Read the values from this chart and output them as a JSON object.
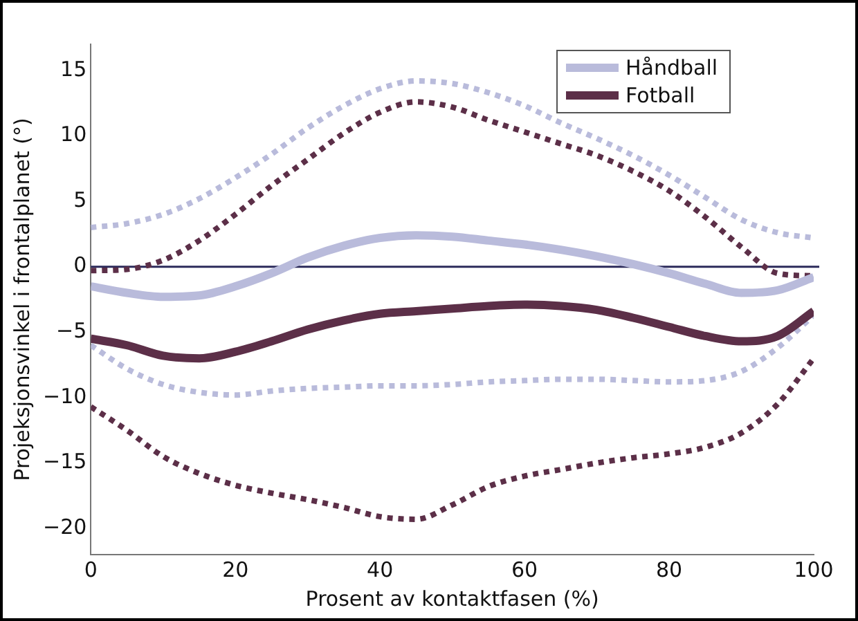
{
  "chart_data": {
    "type": "line",
    "xlabel": "Prosent av kontaktfasen (%)",
    "ylabel": "Projeksjonsvinkel i frontalplanet (°)",
    "x": [
      0,
      5,
      10,
      15,
      20,
      25,
      30,
      35,
      40,
      45,
      50,
      55,
      60,
      65,
      70,
      75,
      80,
      85,
      90,
      95,
      100
    ],
    "xlim": [
      0,
      100
    ],
    "xticks": [
      0,
      20,
      40,
      60,
      80,
      100
    ],
    "ylim": [
      -22,
      17
    ],
    "yticks": [
      -20,
      -15,
      -10,
      -5,
      0,
      5,
      10,
      15
    ],
    "grid": false,
    "legend": "top right",
    "marker": "none",
    "ref_lines": [
      {
        "axis": "y",
        "value": 0,
        "color": "#2b2a5a"
      }
    ],
    "series": [
      {
        "name": "Håndball",
        "color": "#b9bbdb",
        "line_style": "solid",
        "values": [
          -1.5,
          -2,
          -2.3,
          -2.2,
          -1.5,
          -0.5,
          0.7,
          1.6,
          2.2,
          2.4,
          2.3,
          2.0,
          1.7,
          1.3,
          0.8,
          0.2,
          -0.5,
          -1.3,
          -2,
          -1.8,
          -0.8
        ]
      },
      {
        "name": "Fotball",
        "color": "#5c2f48",
        "line_style": "solid",
        "values": [
          -5.5,
          -6,
          -6.8,
          -7,
          -6.5,
          -5.7,
          -4.8,
          -4.1,
          -3.6,
          -3.4,
          -3.2,
          -3.0,
          -2.9,
          -3.0,
          -3.3,
          -3.9,
          -4.6,
          -5.3,
          -5.7,
          -5.3,
          -3.4
        ]
      },
      {
        "color": "#b9bbdb",
        "line_style": "dotted",
        "values": [
          3,
          3.3,
          4,
          5.2,
          6.8,
          8.6,
          10.6,
          12.3,
          13.6,
          14.2,
          14,
          13.3,
          12.3,
          11,
          9.8,
          8.5,
          7,
          5.3,
          3.6,
          2.6,
          2.2
        ]
      },
      {
        "color": "#b9bbdb",
        "line_style": "dotted",
        "values": [
          -6,
          -7.8,
          -9,
          -9.6,
          -9.8,
          -9.5,
          -9.3,
          -9.2,
          -9.1,
          -9.1,
          -9,
          -8.8,
          -8.7,
          -8.6,
          -8.6,
          -8.7,
          -8.8,
          -8.7,
          -8,
          -6.2,
          -3.7
        ]
      },
      {
        "color": "#5c2f48",
        "line_style": "dotted",
        "values": [
          -0.3,
          -0.2,
          0.5,
          2,
          4,
          6.2,
          8.2,
          10.2,
          11.8,
          12.6,
          12.2,
          11.2,
          10.3,
          9.4,
          8.5,
          7.3,
          5.8,
          3.8,
          1.5,
          -0.5,
          -0.7
        ]
      },
      {
        "color": "#5c2f48",
        "line_style": "dotted",
        "values": [
          -10.7,
          -12.5,
          -14.5,
          -15.8,
          -16.7,
          -17.3,
          -17.8,
          -18.4,
          -19.1,
          -19.3,
          -18.2,
          -16.8,
          -16,
          -15.5,
          -15,
          -14.6,
          -14.3,
          -13.8,
          -12.7,
          -10.5,
          -7
        ]
      }
    ]
  }
}
